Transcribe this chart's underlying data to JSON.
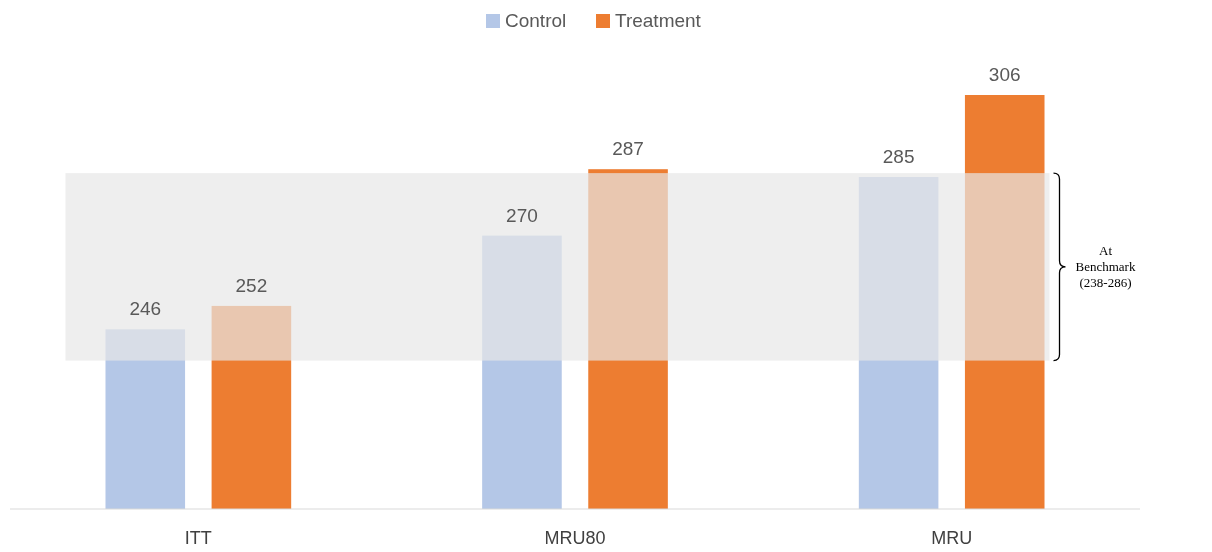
{
  "chart_data": {
    "type": "bar",
    "categories": [
      "ITT",
      "MRU80",
      "MRU"
    ],
    "series": [
      {
        "name": "Control",
        "color": "#b4c7e7",
        "values": [
          246,
          270,
          285
        ]
      },
      {
        "name": "Treatment",
        "color": "#ed7d31",
        "values": [
          252,
          287,
          306
        ]
      }
    ],
    "ylim": [
      200,
      306
    ],
    "tick_labels": "x",
    "data_labels": true,
    "legend": "top",
    "bands": [
      {
        "axis": "y",
        "from": 238,
        "to": 286,
        "label": "At Benchmark (238-286)",
        "color": "#e7e7e7"
      }
    ]
  }
}
